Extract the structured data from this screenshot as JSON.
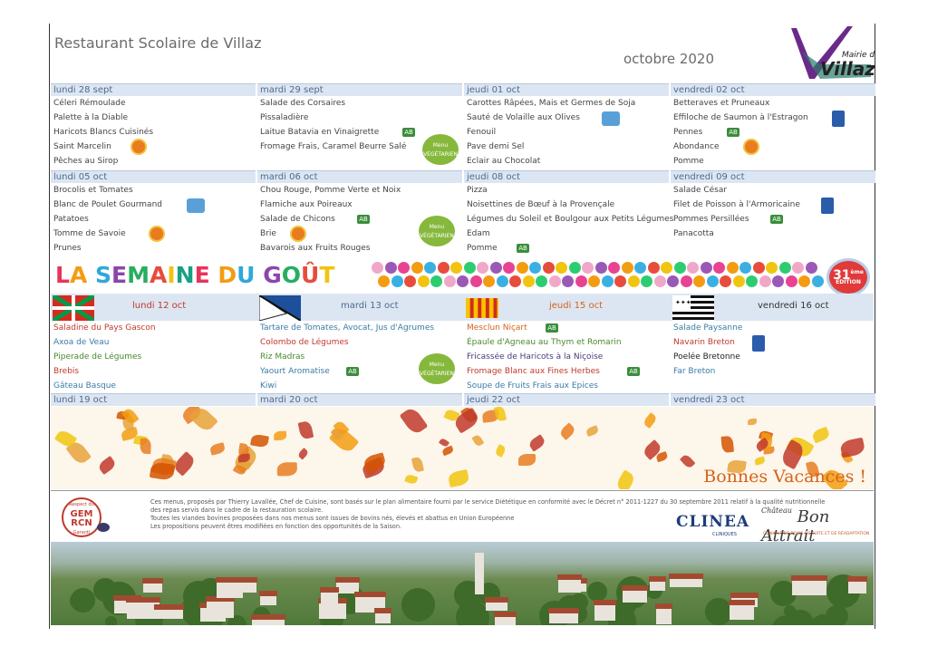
{
  "header": {
    "title": "Restaurant Scolaire de Villaz",
    "month": "octobre 2020",
    "logo_top": "Mairie de",
    "logo_main": "Villaz"
  },
  "weeks": [
    {
      "days": [
        {
          "label": "lundi 28 sept",
          "items": [
            "Céleri Rémoulade",
            "Palette à la Diable",
            "Haricots Blancs Cuisinés",
            "Saint Marcelin",
            "Pêches au Sirop"
          ]
        },
        {
          "label": "mardi 29 sept",
          "items": [
            "Salade des Corsaires",
            "Pissaladière",
            "Laitue Batavia en Vinaigrette",
            "Fromage Frais, Caramel Beurre Salé",
            ""
          ]
        },
        {
          "label": "jeudi 01 oct",
          "items": [
            "Carottes Râpées, Mais et Germes de Soja",
            "Sauté de Volaille aux Olives",
            "Fenouil",
            "Pave demi Sel",
            "Eclair au Chocolat"
          ]
        },
        {
          "label": "vendredi 02 oct",
          "items": [
            "Betteraves et Pruneaux",
            "Effiloche de Saumon à l'Estragon",
            "Pennes",
            "Abondance",
            "Pomme"
          ]
        }
      ]
    },
    {
      "days": [
        {
          "label": "lundi 05 oct",
          "items": [
            "Brocolis et Tomates",
            "Blanc de Poulet Gourmand",
            "Patatoes",
            "Tomme de Savoie",
            "Prunes"
          ]
        },
        {
          "label": "mardi 06 oct",
          "items": [
            "Chou Rouge, Pomme Verte et Noix",
            "Flamiche aux Poireaux",
            "Salade de Chicons",
            "Brie",
            "Bavarois aux Fruits Rouges"
          ]
        },
        {
          "label": "jeudi 08 oct",
          "items": [
            "Pizza",
            "Noisettines de Bœuf à la Provençale",
            "Légumes du Soleil et Boulgour aux Petits Légumes",
            "Edam",
            "Pomme"
          ]
        },
        {
          "label": "vendredi 09 oct",
          "items": [
            "Salade César",
            "Filet de Poisson à l'Armoricaine",
            "Pommes Persillées",
            "Panacotta",
            ""
          ]
        }
      ]
    }
  ],
  "semaine_gout": {
    "title": "LA SEMAINE DU GOÛT",
    "edition_num": "31",
    "edition_sup": "ème",
    "edition_label": "ÉDITION",
    "days": [
      {
        "label": "lundi 12 oct",
        "color": "#c0392b",
        "items": [
          "Saladine du Pays Gascon",
          "Axoa de Veau",
          "Piperade de Légumes",
          "Brebis",
          "Gâteau Basque"
        ]
      },
      {
        "label": "mardi 13 oct",
        "color": "#4f6a8f",
        "items": [
          "Tartare de Tomates, Avocat, Jus d'Agrumes",
          "Colombo de Légumes",
          "Riz Madras",
          "Yaourt Aromatise",
          "Kiwi"
        ]
      },
      {
        "label": "jeudi 15 oct",
        "color": "#d5631a",
        "items": [
          "Mesclun Niçart",
          "Épaule d'Agneau au Thym et Romarin",
          "Fricassée de Haricots à la Niçoise",
          "Fromage Blanc aux Fines Herbes",
          "Soupe de Fruits Frais aux Epices"
        ]
      },
      {
        "label": "vendredi 16 oct",
        "color": "#333333",
        "items": [
          "Salade Paysanne",
          "Navarin Breton",
          "Poelée Bretonne",
          "Far Breton",
          ""
        ]
      }
    ]
  },
  "week4": {
    "days": [
      "lundi 19 oct",
      "mardi 20 oct",
      "jeudi 22 oct",
      "vendredi 23 oct"
    ]
  },
  "vacances": "Bonnes Vacances !",
  "badges": {
    "ab": "AB",
    "menu_veg_line1": "Menu",
    "menu_veg_line2": "VÉGÉTARIEN"
  },
  "footer": {
    "gem_top": "Respect du",
    "gem_main1": "GEM",
    "gem_main2": "RCN",
    "gem_bottom": "Garanti",
    "text_lines": [
      "Ces menus, proposés par Thierry Lavallée, Chef de Cuisine, sont basés sur le plan alimentaire fourni par le service Diététique en conformité avec le Décret n° 2011-1227 du 30 septembre 2011 relatif à la qualité nutritionnelle",
      "des repas servis dans le cadre de la restauration scolaire.",
      "Toutes les viandes bovines proposées dans nos menus sont issues de bovins nés, élevés et abattus en Union Européenne",
      "Les propositions peuvent êtres modifiées en fonction des opportunités de la Saison."
    ],
    "clinea": "CLINEA",
    "clinea_sub": "CLINIQUES",
    "bon_attrait": "Bon Attrait",
    "bon_attrait_pre": "Château",
    "bon_attrait_sub": "CLINIQUE DE SOINS DE SUITE ET DE RÉADAPTATION"
  },
  "colors": {
    "day_header_bg": "#dce6f2",
    "day_header_text": "#4f6a8f",
    "orange": "#d5631a",
    "bio_green": "#3a8e3a"
  }
}
